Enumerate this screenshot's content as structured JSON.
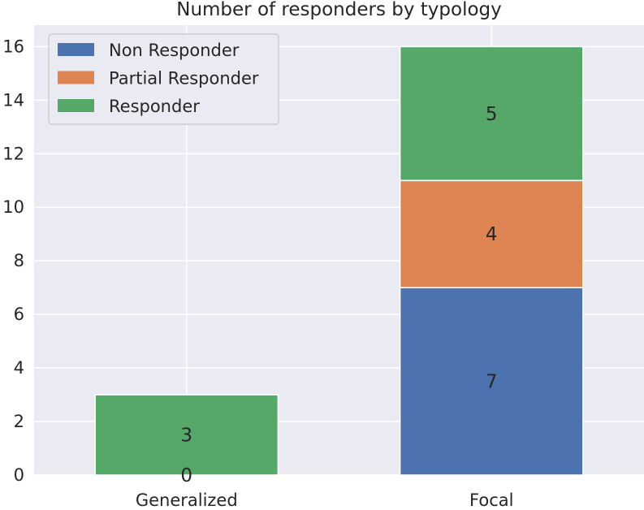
{
  "chart_data": {
    "type": "bar",
    "stacked": true,
    "title": "Number of responders by typology",
    "xlabel": "",
    "ylabel": "",
    "categories": [
      "Generalized",
      "Focal"
    ],
    "series": [
      {
        "name": "Non Responder",
        "values": [
          0,
          7
        ],
        "color": "#4c72b0"
      },
      {
        "name": "Partial Responder",
        "values": [
          0,
          4
        ],
        "color": "#dd8452"
      },
      {
        "name": "Responder",
        "values": [
          3,
          5
        ],
        "color": "#55a868"
      }
    ],
    "data_labels": [
      {
        "category": "Generalized",
        "series": "Non Responder",
        "text": "0"
      },
      {
        "category": "Generalized",
        "series": "Responder",
        "text": "3"
      },
      {
        "category": "Focal",
        "series": "Non Responder",
        "text": "7"
      },
      {
        "category": "Focal",
        "series": "Partial Responder",
        "text": "4"
      },
      {
        "category": "Focal",
        "series": "Responder",
        "text": "5"
      }
    ],
    "ylim": [
      0,
      16.8
    ],
    "yticks": [
      "0",
      "2",
      "4",
      "6",
      "8",
      "10",
      "12",
      "14",
      "16"
    ],
    "grid": true,
    "legend_position": "top-left",
    "background": "#eaeaf2"
  }
}
